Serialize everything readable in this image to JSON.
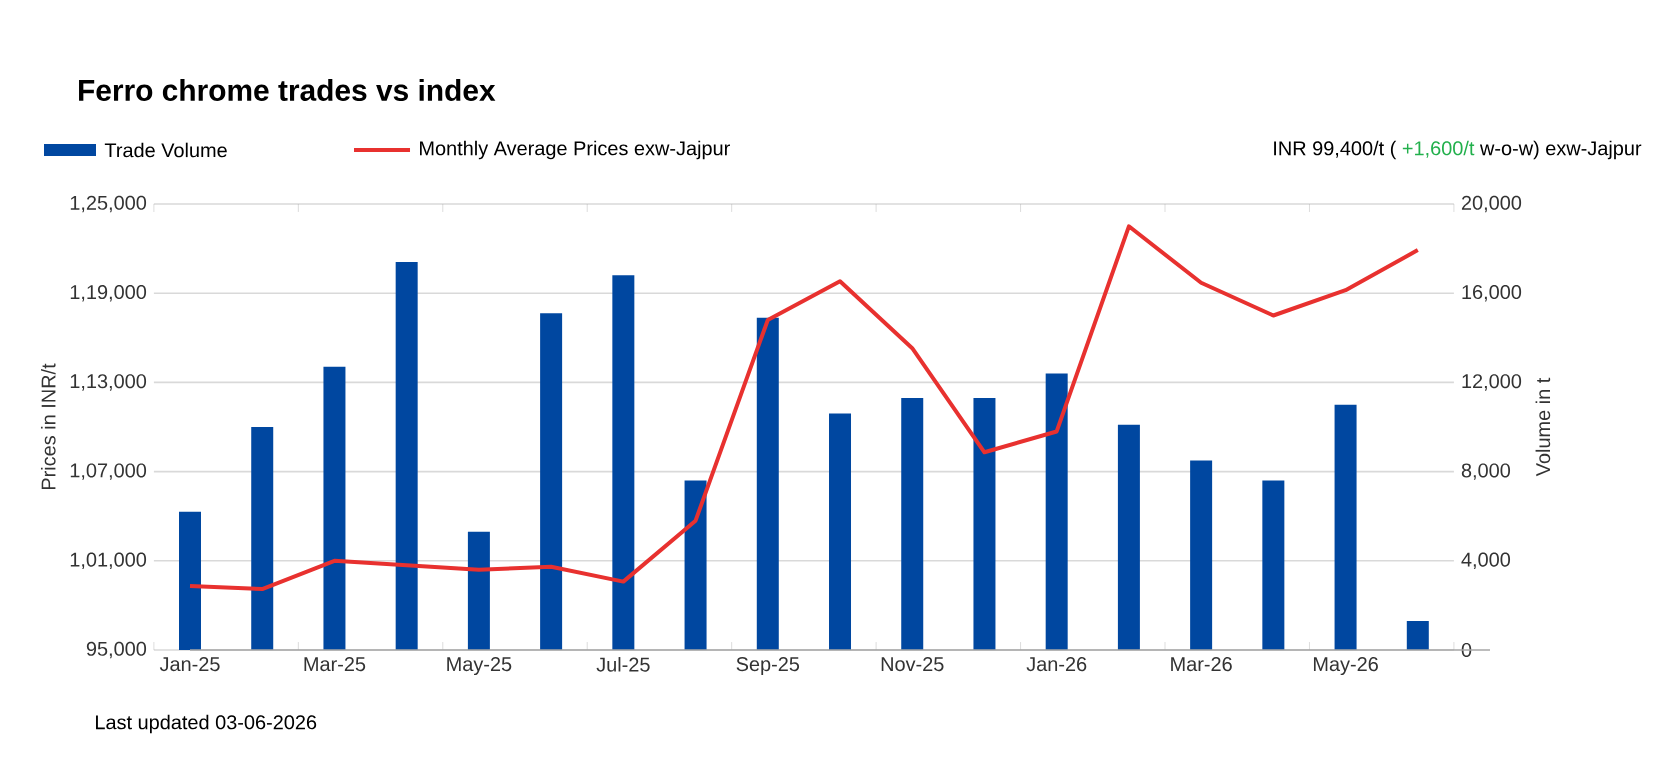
{
  "chart_data": {
    "type": "bar",
    "title": "Ferro chrome trades vs index",
    "categories": [
      "Jan-25",
      null,
      "Mar-25",
      null,
      "May-25",
      null,
      "Jul-25",
      null,
      "Sep-25",
      null,
      "Nov-25",
      null,
      "Jan-26",
      null,
      "Mar-26",
      null,
      "May-26",
      null
    ],
    "series": [
      {
        "name": "Trade Volume",
        "axis": "y2",
        "color": "#0047a0",
        "values": [
          6200,
          10000,
          12700,
          17400,
          5300,
          15100,
          16800,
          7600,
          14900,
          10600,
          11300,
          11300,
          12400,
          10100,
          8500,
          7600,
          11000,
          1300
        ]
      },
      {
        "name": "Monthly Average Prices exw-Jajpur",
        "type": "line",
        "color": "#e8312f",
        "values": [
          99300,
          99100,
          101000,
          100700,
          100400,
          100600,
          99600,
          103700,
          117200,
          119800,
          115300,
          108300,
          109700,
          123500,
          119700,
          117500,
          119200,
          121900
        ]
      }
    ],
    "ylim": [
      95000,
      125000
    ],
    "yticks": [
      {
        "value": 95000,
        "label": "95,000"
      },
      {
        "value": 101000,
        "label": "1,01,000"
      },
      {
        "value": 107000,
        "label": "1,07,000"
      },
      {
        "value": 113000,
        "label": "1,13,000"
      },
      {
        "value": 119000,
        "label": "1,19,000"
      },
      {
        "value": 125000,
        "label": "1,25,000"
      }
    ],
    "y2lim": [
      0,
      20000
    ],
    "y2ticks": [
      0,
      {
        "value": 4000,
        "label": "4,000"
      },
      {
        "value": 8000,
        "label": "8,000"
      },
      {
        "value": 12000,
        "label": "12,000"
      },
      {
        "value": 16000,
        "label": "16,000"
      },
      {
        "value": 20000,
        "label": "20,000"
      }
    ],
    "ylabel": "Prices in INR/t",
    "y2label": "Volume in t",
    "grid": "y",
    "legend": "top left",
    "annotations": [
      "INR 99,400/t (",
      "+1,600/t",
      "w-o-w) exw-Jajpur",
      "Last updated 03-06-2026"
    ]
  }
}
